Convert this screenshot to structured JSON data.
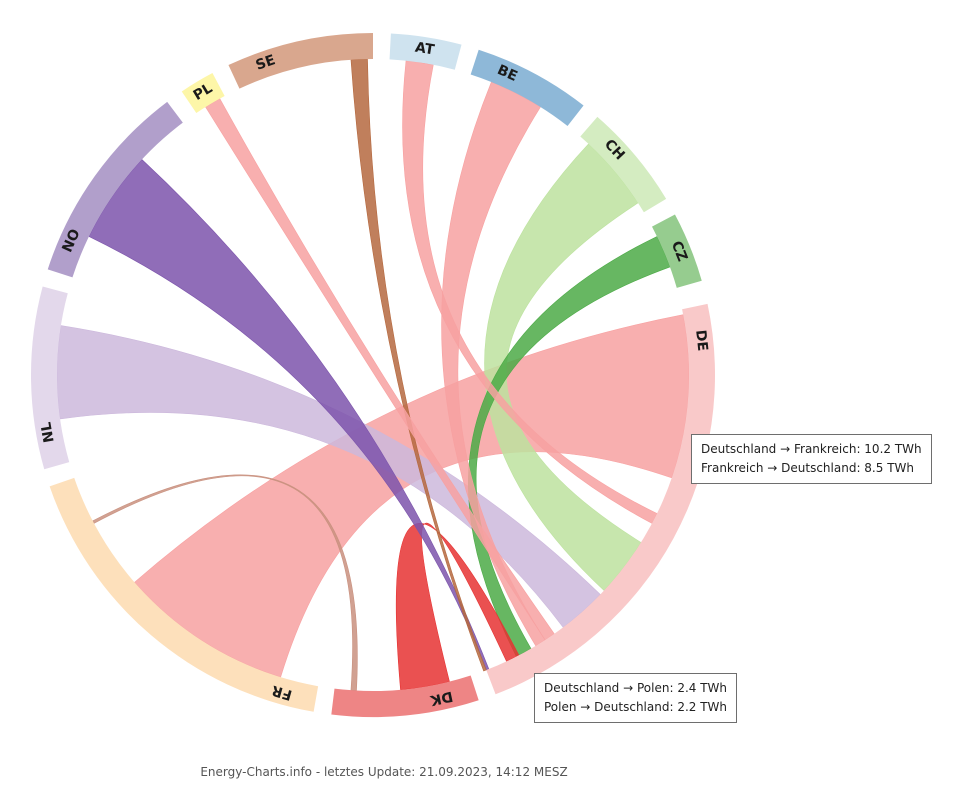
{
  "chart_data": {
    "type": "chord",
    "unit": "TWh",
    "countries": [
      {
        "code": "AT",
        "color": "#cfe3ef"
      },
      {
        "code": "BE",
        "color": "#8eb8d8"
      },
      {
        "code": "CH",
        "color": "#d4ecc1"
      },
      {
        "code": "CZ",
        "color": "#96cc8f"
      },
      {
        "code": "DE",
        "color": "#f9c9c9"
      },
      {
        "code": "DK",
        "color": "#ee8585"
      },
      {
        "code": "FR",
        "color": "#fde0bb"
      },
      {
        "code": "NL",
        "color": "#e3d8eb"
      },
      {
        "code": "NO",
        "color": "#b19fcb"
      },
      {
        "code": "PL",
        "color": "#fdf6a8"
      },
      {
        "code": "SE",
        "color": "#d9a78e"
      }
    ],
    "flows": [
      {
        "pair": "DE-FR",
        "color": "#f7a1a1"
      },
      {
        "pair": "DE-NL",
        "color": "#ccb8dc"
      },
      {
        "pair": "DE-CH",
        "color": "#bde29f"
      },
      {
        "pair": "DE-CZ",
        "color": "#4caa46"
      },
      {
        "pair": "DE-DK",
        "color": "#e63232"
      },
      {
        "pair": "DE-NO",
        "color": "#7c54ab"
      },
      {
        "pair": "DE-SE",
        "color": "#b5693f"
      },
      {
        "pair": "DE-AT",
        "color": "#f7a1a1"
      },
      {
        "pair": "DE-BE",
        "color": "#f7a1a1"
      },
      {
        "pair": "DE-PL",
        "color": "#f7a1a1"
      },
      {
        "pair": "FR-DK",
        "color": "#c9917f"
      }
    ]
  },
  "tooltips": {
    "de_fr": {
      "line1": "Deutschland → Frankreich: 10.2 TWh",
      "line2": "Frankreich → Deutschland: 8.5 TWh"
    },
    "de_pl": {
      "line1": "Deutschland → Polen: 2.4 TWh",
      "line2": "Polen → Deutschland: 2.2 TWh"
    }
  },
  "footer": "Energy-Charts.info - letztes Update: 21.09.2023, 14:12 MESZ"
}
